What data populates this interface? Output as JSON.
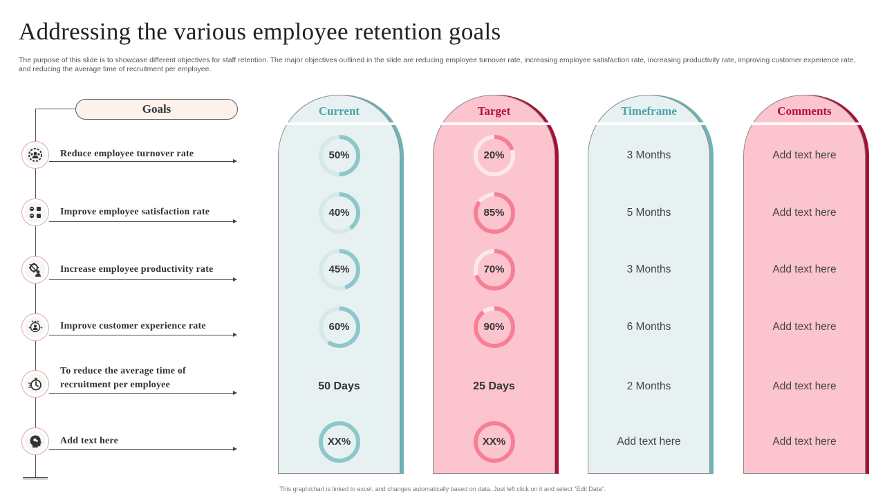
{
  "title": "Addressing the various employee retention goals",
  "description": "The purpose of this slide is to showcase different objectives for staff retention. The major objectives outlined in the slide are reducing employee turnover rate, increasing employee satisfaction rate, increasing productivity rate, improving customer experience rate, and reducing the average time of recruitment per employee.",
  "footer": "This graph/chart is linked to excel, and changes automatically based on data. Just left click on it and select “Edit Data”.",
  "goals_header": "Goals",
  "goals": [
    {
      "label": "Reduce employee turnover rate",
      "icon": "team-gear-icon"
    },
    {
      "label": "Improve employee satisfaction rate",
      "icon": "feedback-icon"
    },
    {
      "label": "Increase employee productivity  rate",
      "icon": "productivity-icon"
    },
    {
      "label": "Improve customer experience rate",
      "icon": "customer-rating-icon"
    },
    {
      "label": "To reduce the average time of recruitment  per employee",
      "icon": "stopwatch-icon"
    },
    {
      "label": "Add text here",
      "icon": "head-profile-icon"
    }
  ],
  "columns": {
    "current": {
      "header": "Current",
      "header_color": "#4aa3a8",
      "fill": "#e8f1f1",
      "shadow": "#6fb3b6",
      "ring": "#8cc7cb",
      "ring_track": "#d6e9ea"
    },
    "target": {
      "header": "Target",
      "header_color": "#b0103a",
      "fill": "#fbc4ce",
      "shadow": "#a80f34",
      "ring": "#f57f95",
      "ring_track": "#fce8ec"
    },
    "timeframe": {
      "header": "Timeframe",
      "header_color": "#4aa3a8",
      "fill": "#e8f1f1",
      "shadow": "#6fb3b6"
    },
    "comments": {
      "header": "Comments",
      "header_color": "#b0103a",
      "fill": "#fbc4ce",
      "shadow": "#a80f34"
    }
  },
  "rows": [
    {
      "current": {
        "label": "50%",
        "value": 0.5
      },
      "target": {
        "label": "20%",
        "value": 0.2
      },
      "timeframe": "3 Months",
      "comment": "Add text here"
    },
    {
      "current": {
        "label": "40%",
        "value": 0.4
      },
      "target": {
        "label": "85%",
        "value": 0.85
      },
      "timeframe": "5 Months",
      "comment": "Add text here"
    },
    {
      "current": {
        "label": "45%",
        "value": 0.45
      },
      "target": {
        "label": "70%",
        "value": 0.7
      },
      "timeframe": "3 Months",
      "comment": "Add text here"
    },
    {
      "current": {
        "label": "60%",
        "value": 0.6
      },
      "target": {
        "label": "90%",
        "value": 0.9
      },
      "timeframe": "6 Months",
      "comment": "Add text here"
    },
    {
      "current": {
        "label": "50 Days"
      },
      "target": {
        "label": "25 Days"
      },
      "timeframe": "2 Months",
      "comment": "Add text here"
    },
    {
      "current": {
        "label": "XX%",
        "value": 1.0
      },
      "target": {
        "label": "XX%",
        "value": 1.0
      },
      "timeframe": "Add text here",
      "comment": "Add text here"
    }
  ]
}
